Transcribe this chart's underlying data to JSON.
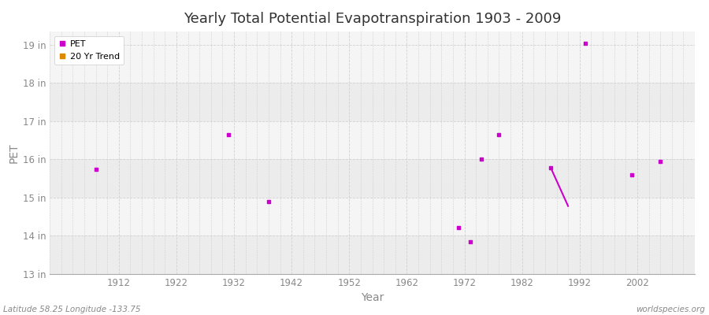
{
  "title": "Yearly Total Potential Evapotranspiration 1903 - 2009",
  "xlabel": "Year",
  "ylabel": "PET",
  "background_color": "#ffffff",
  "plot_bg_color": "#f5f5f5",
  "band_colors": [
    "#ececec",
    "#f5f5f5"
  ],
  "grid_color": "#d0d0d0",
  "pet_color": "#cc00cc",
  "trend_color": "#dd8800",
  "pet_points": [
    [
      1908,
      15.75
    ],
    [
      1931,
      16.65
    ],
    [
      1938,
      14.9
    ],
    [
      1971,
      14.22
    ],
    [
      1973,
      13.85
    ],
    [
      1975,
      16.02
    ],
    [
      1978,
      16.65
    ],
    [
      1987,
      15.78
    ],
    [
      1993,
      19.05
    ],
    [
      2001,
      15.6
    ],
    [
      2006,
      15.95
    ]
  ],
  "trend_line_x": [
    1987,
    1990
  ],
  "trend_line_y": [
    15.78,
    14.78
  ],
  "ylim": [
    13.0,
    19.35
  ],
  "yticks": [
    13,
    14,
    15,
    16,
    17,
    18,
    19
  ],
  "ytick_labels": [
    "13 in",
    "14 in",
    "15 in",
    "16 in",
    "17 in",
    "18 in",
    "19 in"
  ],
  "xlim": [
    1900,
    2012
  ],
  "xticks": [
    1912,
    1922,
    1932,
    1942,
    1952,
    1962,
    1972,
    1982,
    1992,
    2002
  ],
  "minor_xtick_step": 2,
  "footer_left": "Latitude 58.25 Longitude -133.75",
  "footer_right": "worldspecies.org",
  "legend_entries": [
    "PET",
    "20 Yr Trend"
  ]
}
